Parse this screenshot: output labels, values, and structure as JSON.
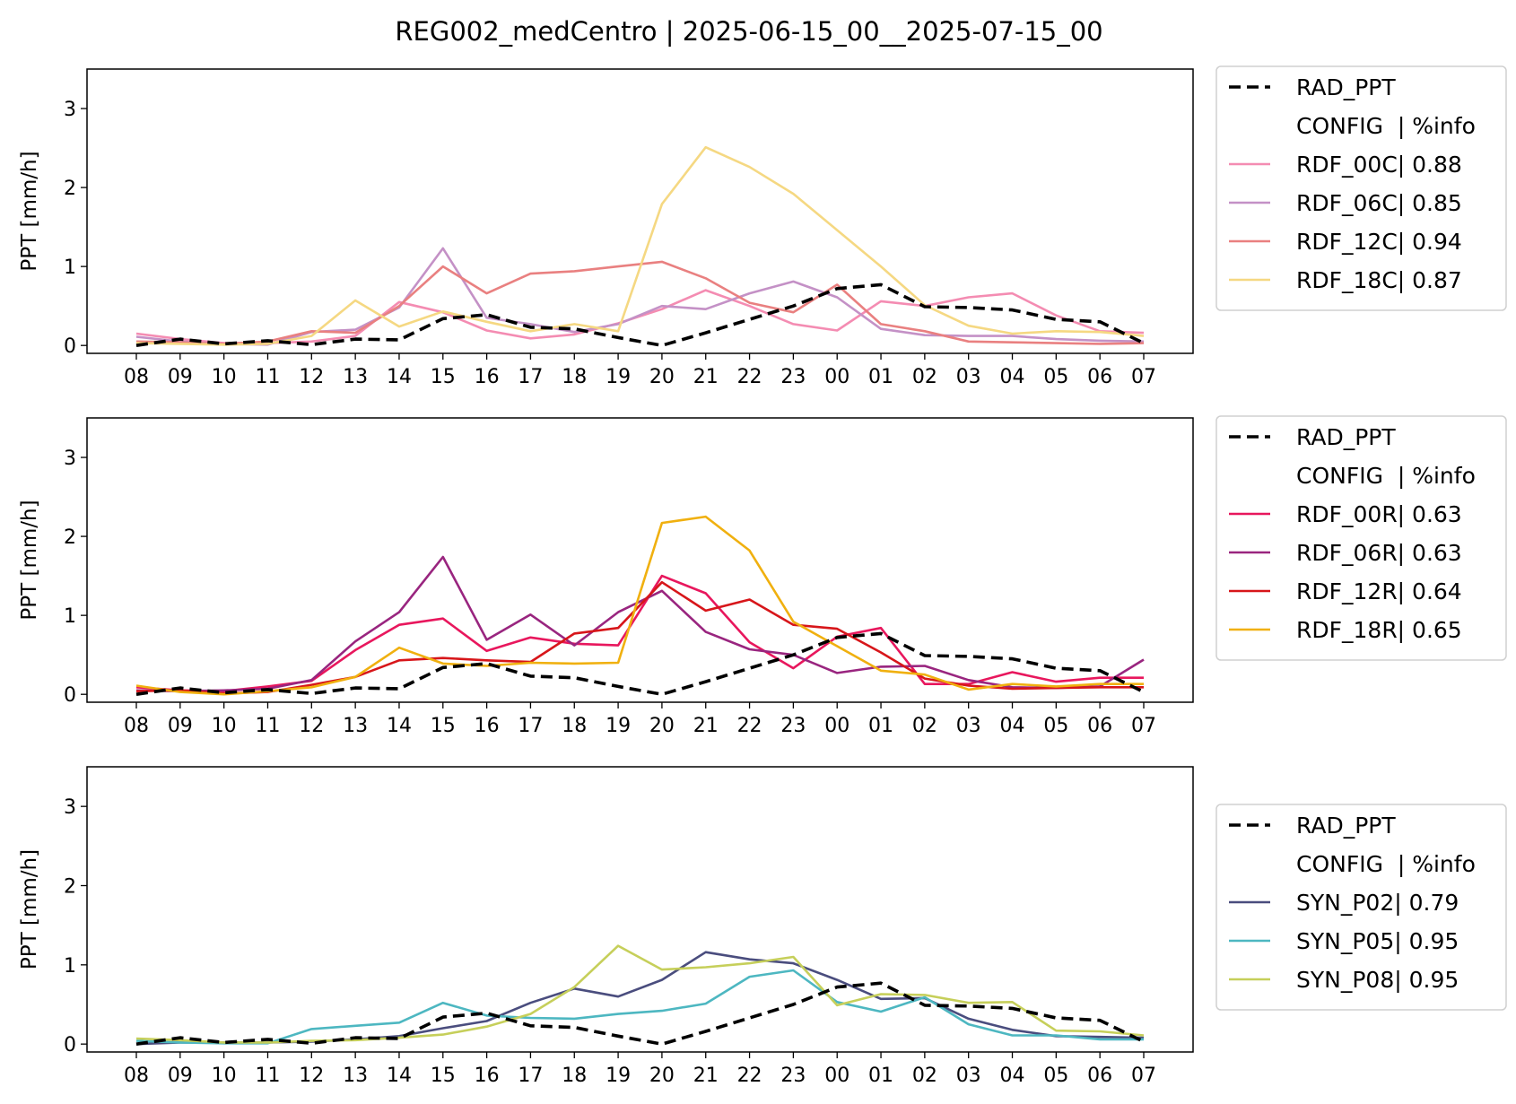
{
  "chart_data": [
    {
      "type": "line",
      "title": "REG002_medCentro | 2025-06-15_00__2025-07-15_00",
      "ylabel": "PPT [mm/h]",
      "ylim": [
        -0.1,
        3.5
      ],
      "yticks": [
        0,
        1,
        2,
        3
      ],
      "categories": [
        "08",
        "09",
        "10",
        "11",
        "12",
        "13",
        "14",
        "15",
        "16",
        "17",
        "18",
        "19",
        "20",
        "21",
        "22",
        "23",
        "00",
        "01",
        "02",
        "03",
        "04",
        "05",
        "06",
        "07"
      ],
      "legend": {
        "placement": "outside-right",
        "header": "CONFIG  | %info"
      },
      "series": [
        {
          "name": "RAD_PPT",
          "color": "#000000",
          "dashed": true,
          "values": [
            0.0,
            0.08,
            0.02,
            0.06,
            0.01,
            0.08,
            0.07,
            0.34,
            0.39,
            0.23,
            0.21,
            0.1,
            0.0,
            0.16,
            0.33,
            0.5,
            0.72,
            0.77,
            0.49,
            0.48,
            0.45,
            0.33,
            0.3,
            0.03
          ]
        },
        {
          "name": "RDF_00C| 0.88",
          "color": "#f48cb2",
          "values": [
            0.15,
            0.08,
            0.03,
            0.03,
            0.05,
            0.12,
            0.55,
            0.42,
            0.19,
            0.09,
            0.14,
            0.28,
            0.46,
            0.7,
            0.5,
            0.27,
            0.19,
            0.56,
            0.5,
            0.61,
            0.66,
            0.38,
            0.18,
            0.16
          ]
        },
        {
          "name": "RDF_06C| 0.85",
          "color": "#c491c6",
          "values": [
            0.11,
            0.05,
            0.02,
            0.01,
            0.17,
            0.2,
            0.48,
            1.23,
            0.35,
            0.27,
            0.17,
            0.27,
            0.5,
            0.46,
            0.66,
            0.81,
            0.61,
            0.21,
            0.13,
            0.12,
            0.12,
            0.08,
            0.06,
            0.05
          ]
        },
        {
          "name": "RDF_12C| 0.94",
          "color": "#e98080",
          "values": [
            0.05,
            0.04,
            0.02,
            0.05,
            0.18,
            0.16,
            0.5,
            1.0,
            0.66,
            0.91,
            0.94,
            1.0,
            1.06,
            0.85,
            0.54,
            0.42,
            0.77,
            0.27,
            0.18,
            0.05,
            0.04,
            0.03,
            0.02,
            0.03
          ]
        },
        {
          "name": "RDF_18C| 0.87",
          "color": "#f5d882",
          "values": [
            0.03,
            0.02,
            0.01,
            0.02,
            0.12,
            0.57,
            0.24,
            0.43,
            0.3,
            0.18,
            0.27,
            0.18,
            1.79,
            2.51,
            2.26,
            1.92,
            1.46,
            1.0,
            0.51,
            0.25,
            0.15,
            0.18,
            0.17,
            0.12
          ]
        }
      ]
    },
    {
      "type": "line",
      "ylabel": "PPT [mm/h]",
      "ylim": [
        -0.1,
        3.5
      ],
      "yticks": [
        0,
        1,
        2,
        3
      ],
      "categories": [
        "08",
        "09",
        "10",
        "11",
        "12",
        "13",
        "14",
        "15",
        "16",
        "17",
        "18",
        "19",
        "20",
        "21",
        "22",
        "23",
        "00",
        "01",
        "02",
        "03",
        "04",
        "05",
        "06",
        "07"
      ],
      "legend": {
        "placement": "outside-right",
        "header": "CONFIG  | %info"
      },
      "series": [
        {
          "name": "RAD_PPT",
          "color": "#000000",
          "dashed": true,
          "values": [
            0.0,
            0.08,
            0.02,
            0.06,
            0.01,
            0.08,
            0.07,
            0.34,
            0.39,
            0.23,
            0.21,
            0.1,
            0.0,
            0.16,
            0.33,
            0.5,
            0.72,
            0.77,
            0.49,
            0.48,
            0.45,
            0.33,
            0.3,
            0.03
          ]
        },
        {
          "name": "RDF_00R| 0.63",
          "color": "#e8175d",
          "values": [
            0.09,
            0.05,
            0.04,
            0.1,
            0.17,
            0.56,
            0.88,
            0.96,
            0.55,
            0.72,
            0.64,
            0.62,
            1.5,
            1.28,
            0.66,
            0.33,
            0.73,
            0.84,
            0.13,
            0.13,
            0.28,
            0.16,
            0.21,
            0.21
          ]
        },
        {
          "name": "RDF_06R| 0.63",
          "color": "#99257f",
          "values": [
            0.05,
            0.04,
            0.05,
            0.07,
            0.18,
            0.67,
            1.04,
            1.74,
            0.69,
            1.01,
            0.62,
            1.04,
            1.31,
            0.79,
            0.57,
            0.5,
            0.27,
            0.35,
            0.36,
            0.18,
            0.09,
            0.08,
            0.1,
            0.44
          ]
        },
        {
          "name": "RDF_12R| 0.64",
          "color": "#d7161a",
          "values": [
            0.04,
            0.05,
            0.01,
            0.03,
            0.12,
            0.22,
            0.43,
            0.46,
            0.43,
            0.41,
            0.77,
            0.84,
            1.42,
            1.06,
            1.2,
            0.88,
            0.83,
            0.53,
            0.2,
            0.11,
            0.07,
            0.08,
            0.09,
            0.09
          ]
        },
        {
          "name": "RDF_18R| 0.65",
          "color": "#f0b00f",
          "values": [
            0.11,
            0.03,
            0.0,
            0.04,
            0.09,
            0.22,
            0.59,
            0.39,
            0.36,
            0.4,
            0.39,
            0.4,
            2.17,
            2.25,
            1.82,
            0.92,
            0.61,
            0.3,
            0.25,
            0.06,
            0.13,
            0.1,
            0.13,
            0.13
          ]
        }
      ]
    },
    {
      "type": "line",
      "ylabel": "PPT [mm/h]",
      "ylim": [
        -0.1,
        3.5
      ],
      "yticks": [
        0,
        1,
        2,
        3
      ],
      "categories": [
        "08",
        "09",
        "10",
        "11",
        "12",
        "13",
        "14",
        "15",
        "16",
        "17",
        "18",
        "19",
        "20",
        "21",
        "22",
        "23",
        "00",
        "01",
        "02",
        "03",
        "04",
        "05",
        "06",
        "07"
      ],
      "legend": {
        "placement": "outside-right",
        "header": "CONFIG  | %info"
      },
      "series": [
        {
          "name": "RAD_PPT",
          "color": "#000000",
          "dashed": true,
          "values": [
            0.0,
            0.08,
            0.02,
            0.06,
            0.01,
            0.08,
            0.07,
            0.34,
            0.39,
            0.23,
            0.21,
            0.1,
            0.0,
            0.16,
            0.33,
            0.5,
            0.72,
            0.77,
            0.49,
            0.48,
            0.45,
            0.33,
            0.3,
            0.03
          ]
        },
        {
          "name": "SYN_P02| 0.79",
          "color": "#4a4d7e",
          "values": [
            0.0,
            0.02,
            0.02,
            0.02,
            0.03,
            0.06,
            0.1,
            0.2,
            0.29,
            0.52,
            0.7,
            0.6,
            0.81,
            1.16,
            1.07,
            1.02,
            0.81,
            0.57,
            0.58,
            0.32,
            0.18,
            0.1,
            0.09,
            0.08
          ]
        },
        {
          "name": "SYN_P05| 0.95",
          "color": "#4db7c1",
          "values": [
            0.04,
            0.02,
            0.01,
            0.01,
            0.19,
            0.23,
            0.27,
            0.52,
            0.36,
            0.33,
            0.32,
            0.38,
            0.42,
            0.51,
            0.85,
            0.93,
            0.53,
            0.41,
            0.59,
            0.25,
            0.11,
            0.11,
            0.06,
            0.06
          ]
        },
        {
          "name": "SYN_P08| 0.95",
          "color": "#c6cf5a",
          "values": [
            0.07,
            0.05,
            0.02,
            0.02,
            0.04,
            0.05,
            0.08,
            0.12,
            0.22,
            0.38,
            0.72,
            1.24,
            0.94,
            0.97,
            1.02,
            1.1,
            0.49,
            0.63,
            0.62,
            0.52,
            0.53,
            0.17,
            0.16,
            0.11
          ]
        }
      ]
    }
  ]
}
